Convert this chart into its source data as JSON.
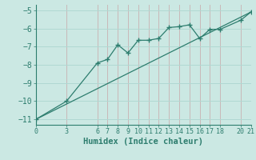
{
  "xlabel": "Humidex (Indice chaleur)",
  "bg_color": "#cbe8e3",
  "grid_color": "#b0d8d2",
  "line_color": "#2d7d6e",
  "xlim": [
    0,
    21
  ],
  "ylim": [
    -11.3,
    -4.7
  ],
  "xticks": [
    0,
    3,
    6,
    7,
    8,
    9,
    10,
    11,
    12,
    13,
    14,
    15,
    16,
    17,
    18,
    20,
    21
  ],
  "yticks": [
    -11,
    -10,
    -9,
    -8,
    -7,
    -6,
    -5
  ],
  "line1_x": [
    0,
    3,
    6,
    7,
    8,
    9,
    10,
    11,
    12,
    13,
    14,
    15,
    16,
    17,
    18,
    20,
    21
  ],
  "line1_y": [
    -11.0,
    -10.0,
    -7.9,
    -7.7,
    -6.9,
    -7.35,
    -6.65,
    -6.65,
    -6.55,
    -5.95,
    -5.9,
    -5.8,
    -6.55,
    -6.05,
    -6.05,
    -5.55,
    -5.1
  ],
  "line2_x": [
    0,
    21
  ],
  "line2_y": [
    -11.0,
    -5.1
  ]
}
